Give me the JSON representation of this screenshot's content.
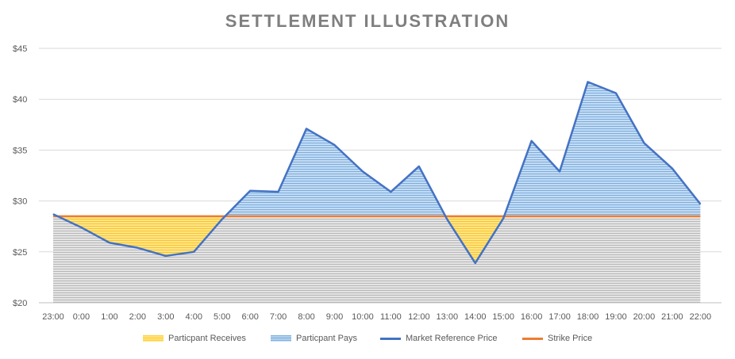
{
  "chart_data": {
    "type": "area",
    "title": "SETTLEMENT ILLUSTRATION",
    "xlabel": "",
    "ylabel": "",
    "categories": [
      "23:00",
      "0:00",
      "1:00",
      "2:00",
      "3:00",
      "4:00",
      "5:00",
      "6:00",
      "7:00",
      "8:00",
      "9:00",
      "10:00",
      "11:00",
      "12:00",
      "13:00",
      "14:00",
      "15:00",
      "16:00",
      "17:00",
      "18:00",
      "19:00",
      "20:00",
      "21:00",
      "22:00"
    ],
    "ylim": [
      20,
      45
    ],
    "yticks": [
      "$20",
      "$25",
      "$30",
      "$35",
      "$40",
      "$45"
    ],
    "grid": true,
    "legend_position": "bottom",
    "series": [
      {
        "name": "Particpant Receives",
        "kind": "area",
        "color": "#ffc000"
      },
      {
        "name": "Particpant Pays",
        "kind": "area",
        "color": "#5b9bd5"
      },
      {
        "name": "Market Reference Price",
        "kind": "line",
        "color": "#4472c4",
        "values": [
          28.7,
          27.4,
          25.9,
          25.4,
          24.6,
          25.0,
          28.2,
          31.0,
          30.9,
          37.1,
          35.5,
          32.9,
          30.9,
          33.4,
          28.2,
          23.9,
          28.3,
          35.9,
          32.9,
          41.7,
          40.6,
          35.7,
          33.2,
          29.7
        ]
      },
      {
        "name": "Strike Price",
        "kind": "line",
        "color": "#ed7d31",
        "values": [
          28.5,
          28.5,
          28.5,
          28.5,
          28.5,
          28.5,
          28.5,
          28.5,
          28.5,
          28.5,
          28.5,
          28.5,
          28.5,
          28.5,
          28.5,
          28.5,
          28.5,
          28.5,
          28.5,
          28.5,
          28.5,
          28.5,
          28.5,
          28.5
        ]
      }
    ],
    "colors": {
      "base_area": "#c9c9c9",
      "grid": "#d9d9d9",
      "axis_text": "#595959",
      "title": "#7f7f7f"
    }
  }
}
